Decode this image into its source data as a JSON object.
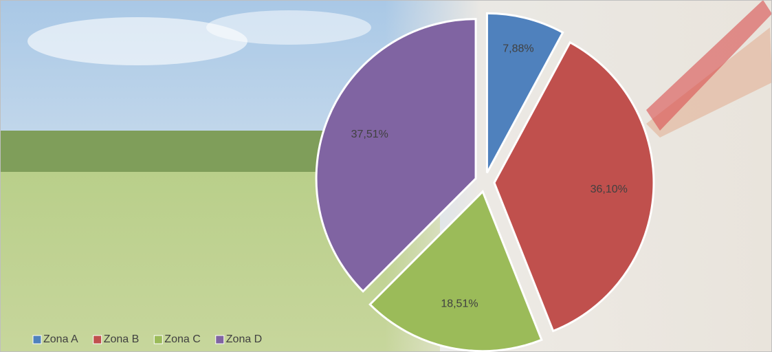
{
  "chart_data": {
    "type": "pie",
    "categories": [
      "Zona A",
      "Zona B",
      "Zona C",
      "Zona D"
    ],
    "values": [
      7.88,
      36.1,
      18.51,
      37.51
    ],
    "value_labels": [
      "7,88%",
      "36,10%",
      "18,51%",
      "37,51%"
    ],
    "colors": [
      "#4f81bd",
      "#c0504d",
      "#9bbb59",
      "#8064a2"
    ],
    "exploded": true,
    "legend": "bottom-left"
  }
}
